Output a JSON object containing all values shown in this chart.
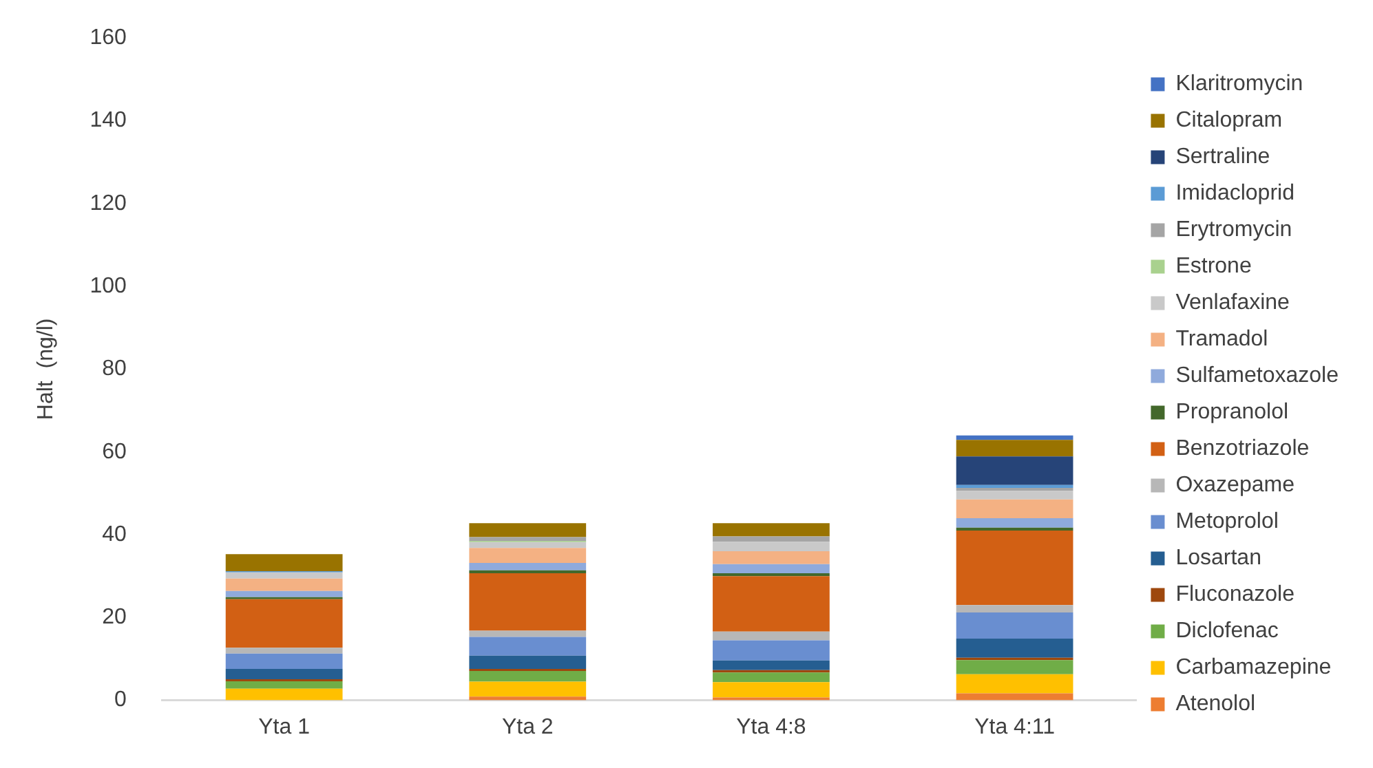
{
  "chart_data": {
    "type": "bar",
    "stacked": true,
    "ylabel": "Halt  (ng/l)",
    "categories": [
      "Yta 1",
      "Yta 2",
      "Yta 4:8",
      "Yta 4:11"
    ],
    "ylim": [
      0,
      160
    ],
    "yticks": [
      0,
      20,
      40,
      60,
      80,
      100,
      120,
      140,
      160
    ],
    "grid": false,
    "legend": "right",
    "series": [
      {
        "name": "Atenolol",
        "color": "#ed7d31",
        "values": [
          0,
          0.9,
          0.7,
          1.7
        ]
      },
      {
        "name": "Carbamazepine",
        "color": "#ffc000",
        "values": [
          2.8,
          3.6,
          3.7,
          4.6
        ]
      },
      {
        "name": "Diclofenac",
        "color": "#70ad47",
        "values": [
          1.8,
          2.6,
          2.3,
          3.4
        ]
      },
      {
        "name": "Fluconazole",
        "color": "#9e480e",
        "values": [
          0.5,
          0.5,
          0.6,
          0.6
        ]
      },
      {
        "name": "Losartan",
        "color": "#255e91",
        "values": [
          2.5,
          3.2,
          2.3,
          4.6
        ]
      },
      {
        "name": "Metoprolol",
        "color": "#698ed0",
        "values": [
          3.7,
          4.5,
          4.9,
          6.3
        ]
      },
      {
        "name": "Oxazepame",
        "color": "#b7b7b7",
        "values": [
          1.4,
          1.5,
          2.1,
          1.8
        ]
      },
      {
        "name": "Benzotriazole",
        "color": "#d26014",
        "values": [
          11.7,
          13.9,
          13.4,
          18.0
        ]
      },
      {
        "name": "Propranolol",
        "color": "#43682b",
        "values": [
          0.5,
          0.7,
          0.7,
          0.7
        ]
      },
      {
        "name": "Sulfametoxazole",
        "color": "#8faadc",
        "values": [
          1.5,
          1.8,
          2.2,
          2.3
        ]
      },
      {
        "name": "Tramadol",
        "color": "#f4b183",
        "values": [
          3.0,
          3.6,
          3.1,
          4.5
        ]
      },
      {
        "name": "Venlafaxine",
        "color": "#c9c9c9",
        "values": [
          1.5,
          1.4,
          2.3,
          2.1
        ]
      },
      {
        "name": "Estrone",
        "color": "#a9d18e",
        "values": [
          0,
          0.3,
          0,
          0
        ]
      },
      {
        "name": "Erytromycin",
        "color": "#a5a5a5",
        "values": [
          0,
          0.9,
          1.3,
          0.7
        ]
      },
      {
        "name": "Imidacloprid",
        "color": "#5b9bd5",
        "values": [
          0.3,
          0,
          0,
          0.7
        ]
      },
      {
        "name": "Sertraline",
        "color": "#264478",
        "values": [
          0,
          0,
          0,
          6.9
        ]
      },
      {
        "name": "Citalopram",
        "color": "#997300",
        "values": [
          4.1,
          3.4,
          3.2,
          4.0
        ]
      },
      {
        "name": "Klaritromycin",
        "color": "#4472c4",
        "values": [
          0,
          0,
          0,
          1.1
        ]
      }
    ]
  }
}
